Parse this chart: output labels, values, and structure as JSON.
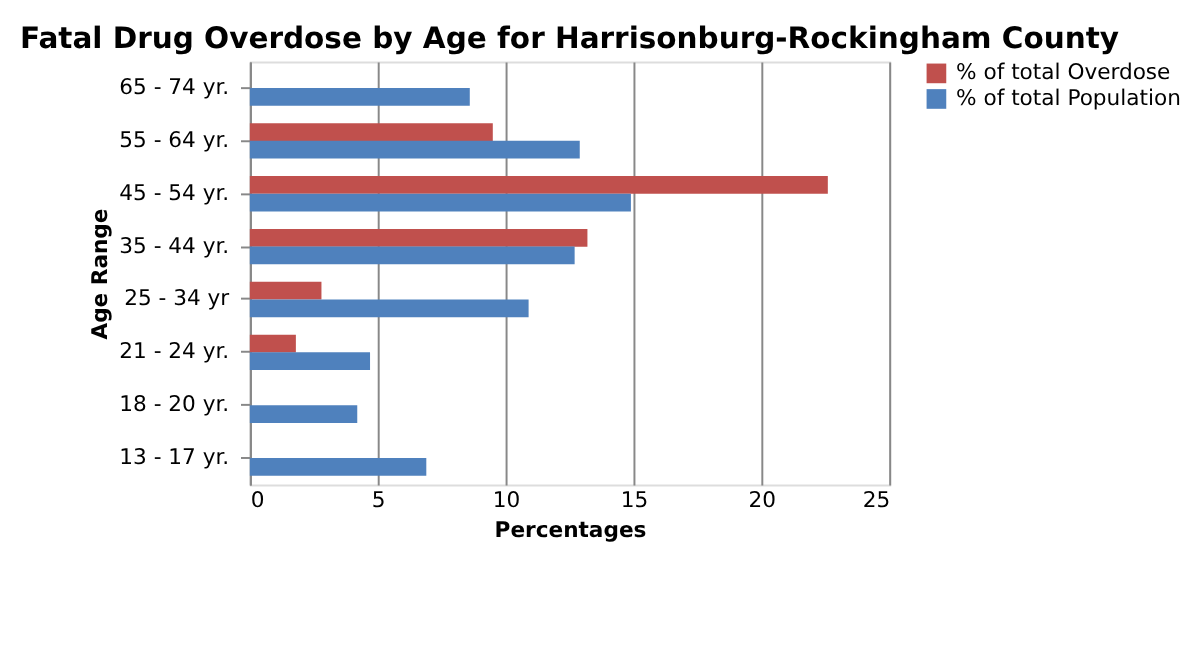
{
  "chart_data": {
    "type": "bar",
    "orientation": "horizontal",
    "title": "Fatal Drug Overdose by Age for Harrisonburg-Rockingham County",
    "xlabel": "Percentages",
    "ylabel": "Age Range",
    "categories": [
      "65 - 74 yr.",
      "55 - 64 yr.",
      "45 - 54 yr.",
      "35 - 44 yr.",
      "25 - 34 yr",
      "21 - 24 yr.",
      "18 - 20 yr.",
      "13 - 17 yr."
    ],
    "series": [
      {
        "name": "% of total Overdose",
        "color": "#c0504d",
        "values": [
          0,
          9.5,
          22.6,
          13.2,
          2.8,
          1.8,
          0,
          0
        ]
      },
      {
        "name": "% of total Population",
        "color": "#4f81bd",
        "values": [
          8.6,
          12.9,
          14.9,
          12.7,
          10.9,
          4.7,
          4.2,
          6.9
        ]
      }
    ],
    "xlim": [
      0,
      25
    ],
    "xticks": [
      0,
      5,
      10,
      15,
      20,
      25
    ],
    "grid": "x",
    "legend": "right"
  }
}
